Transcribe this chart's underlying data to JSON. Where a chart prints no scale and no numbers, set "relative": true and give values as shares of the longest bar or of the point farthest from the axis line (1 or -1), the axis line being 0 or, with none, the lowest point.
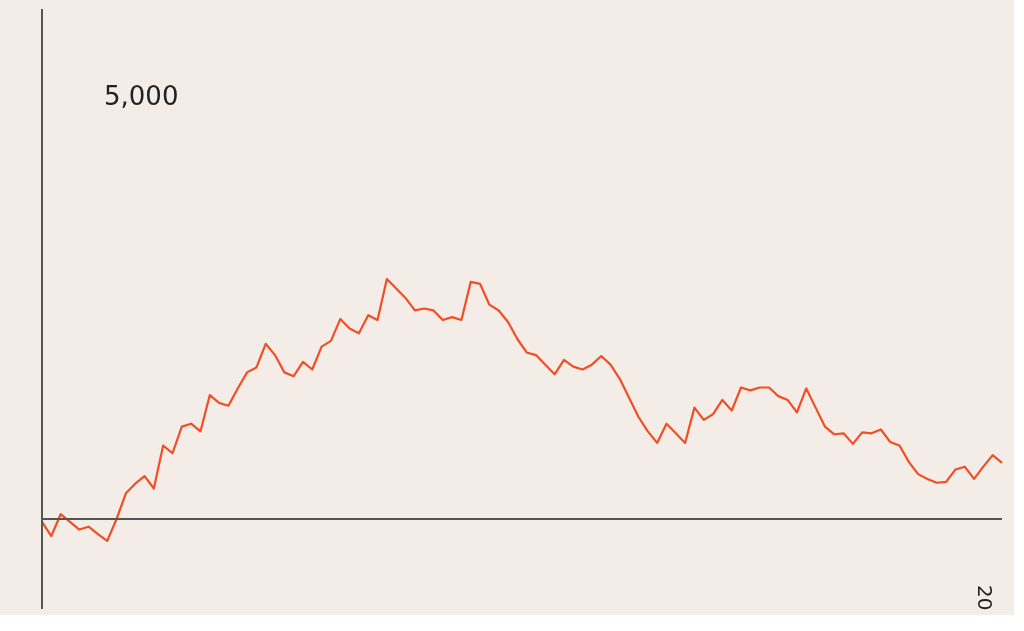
{
  "chart_data": {
    "type": "line",
    "relative": true,
    "annotations": [
      "5,000",
      "20"
    ],
    "categories": [
      null,
      null,
      null,
      null,
      null,
      null,
      null,
      null,
      null,
      null,
      null,
      null,
      null,
      null,
      null,
      null,
      null,
      null,
      null,
      null,
      null,
      null,
      null,
      null,
      null,
      null,
      null,
      null,
      null,
      null,
      null,
      null,
      null,
      null,
      null,
      null,
      null,
      null,
      null,
      null,
      null,
      null,
      null,
      null,
      null,
      null,
      null,
      null,
      null,
      null,
      null,
      null,
      null,
      null,
      null,
      null,
      null,
      null,
      null,
      null,
      null,
      null,
      null,
      null,
      null,
      null,
      null,
      null,
      null,
      null,
      null,
      null,
      null,
      null,
      null,
      null,
      null,
      null,
      null,
      null,
      null,
      null,
      null,
      null,
      null,
      null,
      null,
      null,
      null,
      null,
      null,
      null,
      null,
      null,
      null,
      null,
      null,
      null,
      null,
      null,
      null,
      null,
      null,
      null
    ],
    "series": [
      {
        "color": "#f24e26",
        "values": [
          -0.012,
          -0.071,
          0.02,
          -0.012,
          -0.044,
          -0.032,
          -0.063,
          -0.091,
          0,
          0.107,
          0.147,
          0.179,
          0.127,
          0.306,
          0.274,
          0.385,
          0.397,
          0.365,
          0.516,
          0.484,
          0.472,
          0.544,
          0.611,
          0.631,
          0.73,
          0.683,
          0.611,
          0.595,
          0.655,
          0.623,
          0.718,
          0.742,
          0.833,
          0.794,
          0.774,
          0.849,
          0.829,
          1,
          0.96,
          0.921,
          0.869,
          0.877,
          0.869,
          0.829,
          0.841,
          0.829,
          0.988,
          0.98,
          0.893,
          0.869,
          0.821,
          0.75,
          0.694,
          0.683,
          0.643,
          0.603,
          0.663,
          0.635,
          0.623,
          0.643,
          0.679,
          0.643,
          0.583,
          0.504,
          0.425,
          0.365,
          0.317,
          0.397,
          0.357,
          0.317,
          0.464,
          0.413,
          0.437,
          0.496,
          0.452,
          0.548,
          0.536,
          0.548,
          0.548,
          0.512,
          0.496,
          0.444,
          0.544,
          0.464,
          0.385,
          0.353,
          0.357,
          0.313,
          0.361,
          0.357,
          0.373,
          0.321,
          0.306,
          0.238,
          0.187,
          0.167,
          0.151,
          0.155,
          0.206,
          0.218,
          0.167,
          0.218,
          0.266,
          0.234
        ]
      }
    ]
  }
}
